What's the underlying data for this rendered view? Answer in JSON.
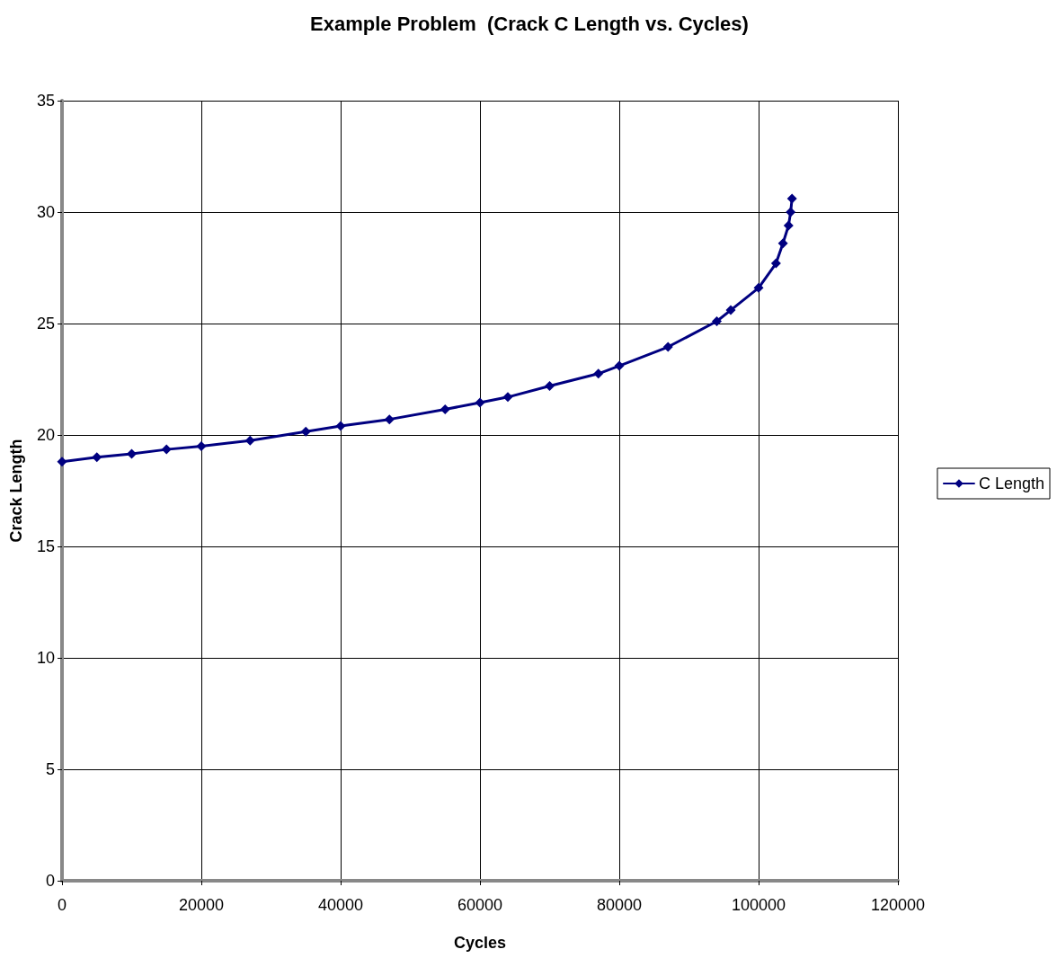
{
  "chart_data": {
    "type": "line",
    "title": "Example Problem  (Crack C Length vs. Cycles)",
    "xlabel": "Cycles",
    "ylabel": "Crack Length",
    "series": [
      {
        "name": "C Length",
        "color": "#000080",
        "x": [
          0,
          5000,
          10000,
          15000,
          20000,
          27000,
          35000,
          40000,
          47000,
          55000,
          60000,
          64000,
          70000,
          77000,
          80000,
          87000,
          94000,
          96000,
          100000,
          102500,
          103500,
          104300,
          104600,
          104800
        ],
        "values": [
          18.8,
          19.0,
          19.15,
          19.35,
          19.5,
          19.75,
          20.15,
          20.4,
          20.7,
          21.15,
          21.45,
          21.7,
          22.2,
          22.75,
          23.1,
          23.95,
          25.1,
          25.6,
          26.6,
          27.7,
          28.6,
          29.4,
          30.0,
          30.6
        ]
      }
    ],
    "xlim": [
      0,
      120000
    ],
    "xticks": [
      0,
      20000,
      40000,
      60000,
      80000,
      100000,
      120000
    ],
    "ylim": [
      0,
      35
    ],
    "yticks": [
      0,
      5,
      10,
      15,
      20,
      25,
      30,
      35
    ],
    "grid": true,
    "legend": "right",
    "marker": "diamond",
    "line_style": "solid"
  }
}
